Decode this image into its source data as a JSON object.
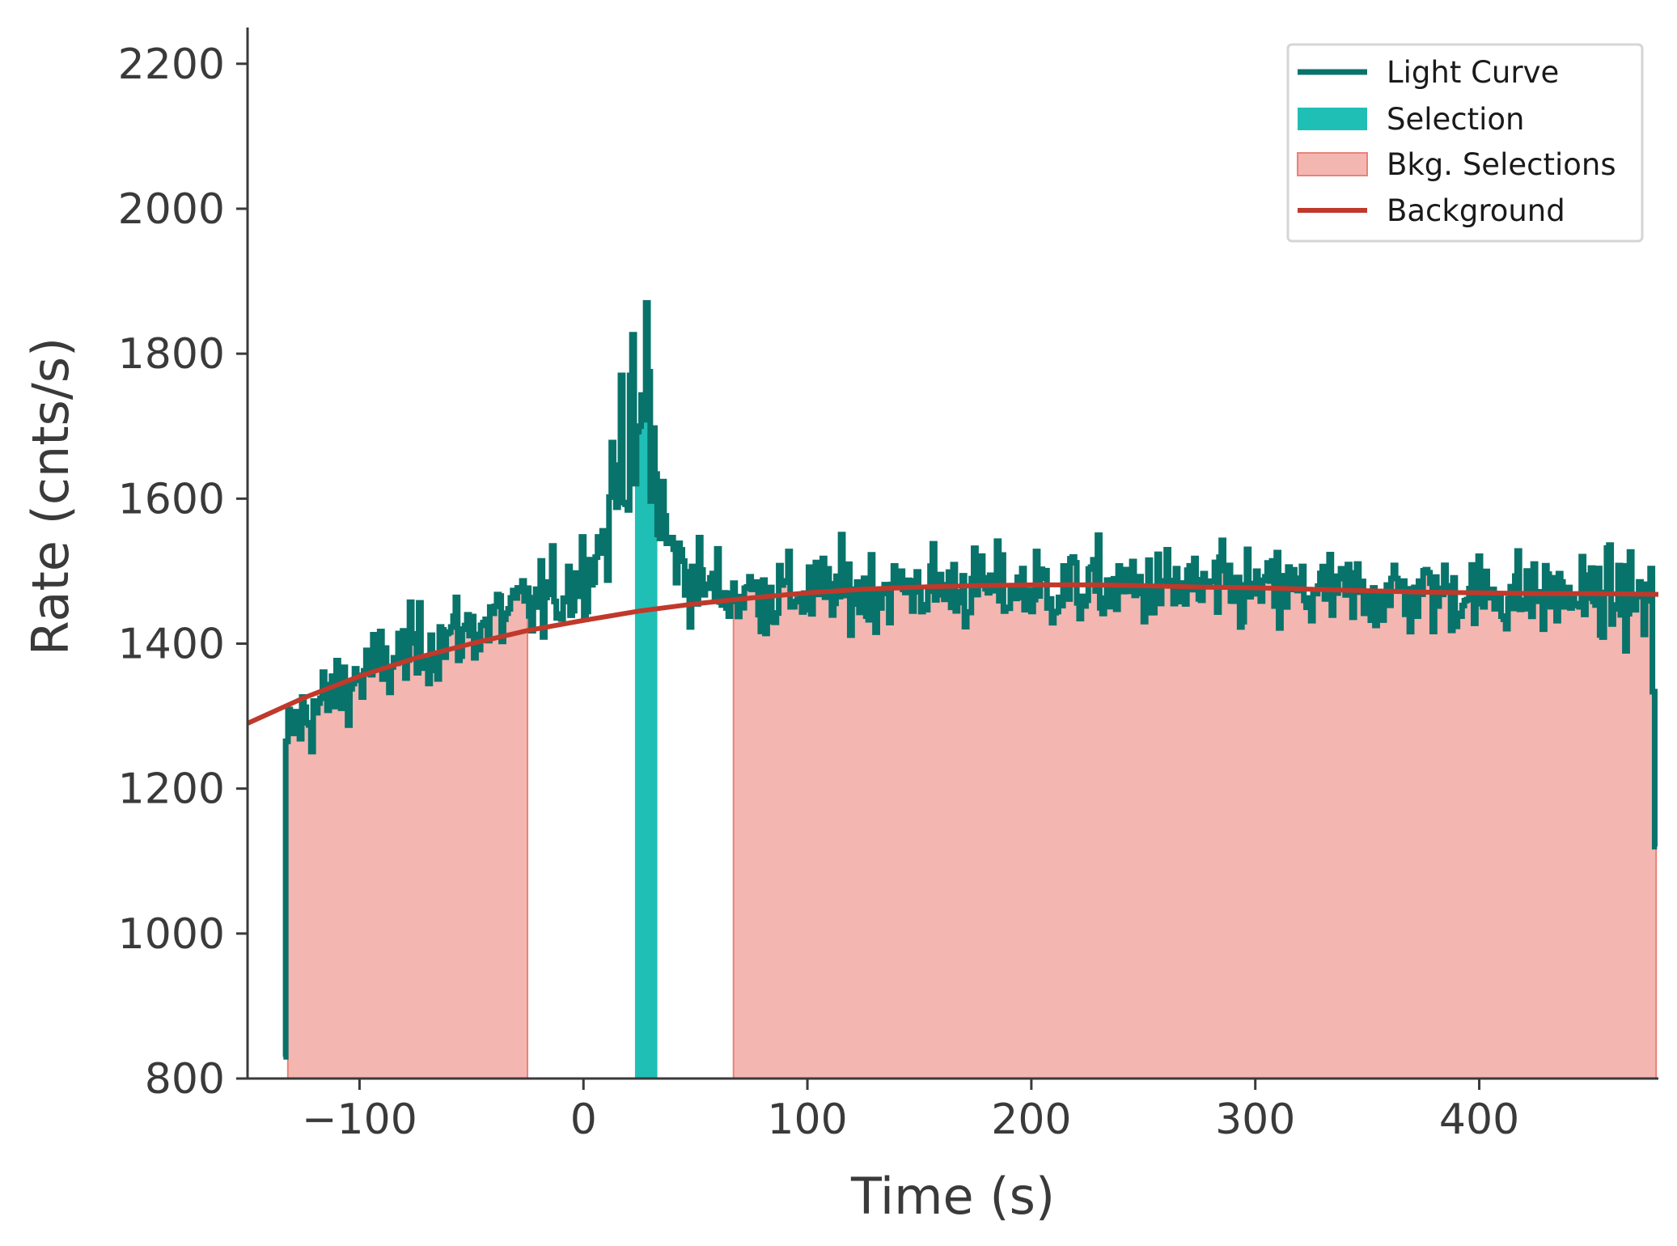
{
  "chart_data": {
    "type": "line",
    "title": "",
    "xlabel": "Time (s)",
    "ylabel": "Rate (cnts/s)",
    "xlim": [
      -150,
      480
    ],
    "ylim": [
      800,
      2250
    ],
    "grid": false,
    "legend_position": "top-right",
    "x_ticks": [
      -100,
      0,
      100,
      200,
      300,
      400
    ],
    "x_tick_labels": [
      "−100",
      "0",
      "100",
      "200",
      "300",
      "400"
    ],
    "y_ticks": [
      800,
      1000,
      1200,
      1400,
      1600,
      1800,
      2000,
      2200
    ],
    "y_tick_labels": [
      "800",
      "1000",
      "1200",
      "1400",
      "1600",
      "1800",
      "2000",
      "2200"
    ],
    "colors": {
      "light_curve": "#08736a",
      "selection": "#20bfb5",
      "bkg_fill": "#f4b6b1",
      "bkg_edge": "#e8837a",
      "background": "#c0392b",
      "axis": "#3a3a3a"
    },
    "light_curve": {
      "name": "Light Curve",
      "bin_width": 1.024,
      "x": [
        -134,
        479
      ],
      "anchors": [
        [
          -134,
          830
        ],
        [
          -133,
          1265
        ],
        [
          -129,
          1290
        ],
        [
          -120,
          1310
        ],
        [
          -110,
          1335
        ],
        [
          -100,
          1355
        ],
        [
          -90,
          1370
        ],
        [
          -80,
          1385
        ],
        [
          -70,
          1400
        ],
        [
          -60,
          1410
        ],
        [
          -50,
          1420
        ],
        [
          -40,
          1435
        ],
        [
          -30,
          1445
        ],
        [
          -20,
          1455
        ],
        [
          -10,
          1470
        ],
        [
          0,
          1500
        ],
        [
          5,
          1520
        ],
        [
          10,
          1560
        ],
        [
          15,
          1620
        ],
        [
          20,
          1660
        ],
        [
          25,
          1690
        ],
        [
          28,
          1720
        ],
        [
          30,
          1660
        ],
        [
          33,
          1600
        ],
        [
          37,
          1540
        ],
        [
          45,
          1500
        ],
        [
          55,
          1480
        ],
        [
          65,
          1470
        ],
        [
          80,
          1468
        ],
        [
          100,
          1470
        ],
        [
          150,
          1478
        ],
        [
          200,
          1475
        ],
        [
          250,
          1478
        ],
        [
          300,
          1472
        ],
        [
          350,
          1470
        ],
        [
          400,
          1470
        ],
        [
          450,
          1465
        ],
        [
          477,
          1460
        ],
        [
          478,
          1120
        ]
      ],
      "peak_bins": [
        [
          17,
          1770
        ],
        [
          21,
          1770
        ],
        [
          28,
          1870
        ],
        [
          29,
          1775
        ],
        [
          25,
          1700
        ]
      ],
      "noise_sd": 40
    },
    "selection": {
      "name": "Selection",
      "x_range": [
        23,
        33
      ]
    },
    "bkg_selections": {
      "name": "Bkg. Selections",
      "ranges": [
        [
          -132,
          -25
        ],
        [
          67,
          479
        ]
      ]
    },
    "background": {
      "name": "Background",
      "x": [
        -150,
        -125,
        -100,
        -75,
        -50,
        -25,
        0,
        25,
        50,
        75,
        100,
        125,
        150,
        175,
        200,
        225,
        250,
        275,
        300,
        325,
        350,
        375,
        400,
        425,
        450,
        480
      ],
      "y": [
        1290,
        1325,
        1355,
        1380,
        1400,
        1418,
        1432,
        1445,
        1455,
        1463,
        1470,
        1475,
        1478,
        1480,
        1481,
        1481,
        1480,
        1478,
        1477,
        1475,
        1473,
        1471,
        1470,
        1469,
        1469,
        1468
      ]
    },
    "legend": [
      "Light Curve",
      "Selection",
      "Bkg. Selections",
      "Background"
    ]
  }
}
